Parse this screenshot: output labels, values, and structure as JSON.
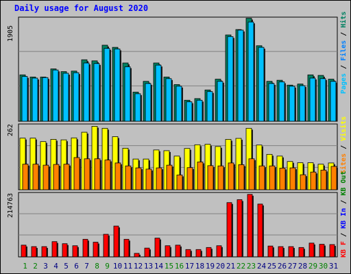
{
  "title": "Daily usage for August 2020",
  "colors": {
    "title": "#0000ff",
    "background": "#c0c0c0",
    "pages": "#00c0ff",
    "files": "#0080ff",
    "hits": "#008060",
    "visits": "#ffff00",
    "sites": "#ff8000",
    "kb_in": "#0000ff",
    "kb_out": "#008000",
    "kb_f": "#ff0000",
    "day_weekday": "#000080",
    "day_weekend": "#008000"
  },
  "chart_data": [
    {
      "type": "bar",
      "title": "Daily usage for August 2020",
      "ymax_label": "1905",
      "ylim": [
        0,
        1905
      ],
      "legend": [
        "Pages",
        "Files",
        "Hits"
      ],
      "categories": [
        "1",
        "2",
        "3",
        "4",
        "5",
        "6",
        "7",
        "8",
        "9",
        "10",
        "11",
        "12",
        "13",
        "14",
        "15",
        "16",
        "17",
        "18",
        "19",
        "20",
        "21",
        "22",
        "23",
        "24",
        "25",
        "26",
        "27",
        "28",
        "29",
        "30",
        "31"
      ],
      "weekend": [
        1,
        2,
        8,
        9,
        15,
        16,
        22,
        23,
        29,
        30
      ],
      "series": [
        {
          "name": "Hits",
          "values": [
            860,
            820,
            820,
            970,
            920,
            930,
            1140,
            1120,
            1410,
            1370,
            1080,
            540,
            740,
            1080,
            820,
            680,
            390,
            420,
            580,
            780,
            1600,
            1700,
            1910,
            1400,
            740,
            760,
            670,
            690,
            860,
            850,
            780
          ]
        },
        {
          "name": "Files",
          "values": [
            830,
            800,
            810,
            950,
            890,
            900,
            1080,
            1070,
            1350,
            1340,
            1010,
            510,
            700,
            1040,
            790,
            650,
            360,
            390,
            550,
            740,
            1570,
            1690,
            1840,
            1370,
            700,
            730,
            650,
            660,
            800,
            790,
            740
          ]
        },
        {
          "name": "Pages",
          "values": [
            0,
            0,
            0,
            0,
            0,
            0,
            0,
            0,
            0,
            0,
            0,
            0,
            0,
            0,
            0,
            0,
            0,
            0,
            0,
            0,
            0,
            0,
            0,
            0,
            0,
            0,
            0,
            0,
            0,
            0,
            0
          ]
        }
      ]
    },
    {
      "type": "bar",
      "ymax_label": "262",
      "ylim": [
        0,
        262
      ],
      "legend": [
        "Visits",
        "Sites"
      ],
      "series": [
        {
          "name": "Visits",
          "values": [
            210,
            210,
            196,
            205,
            203,
            211,
            234,
            258,
            250,
            216,
            169,
            125,
            125,
            162,
            159,
            137,
            168,
            183,
            185,
            176,
            205,
            209,
            250,
            182,
            144,
            137,
            115,
            110,
            110,
            104,
            109
          ]
        },
        {
          "name": "Sites",
          "values": [
            104,
            104,
            100,
            103,
            104,
            131,
            126,
            126,
            121,
            109,
            97,
            89,
            84,
            89,
            100,
            60,
            90,
            113,
            98,
            97,
            109,
            102,
            126,
            97,
            97,
            88,
            89,
            61,
            72,
            80,
            95
          ]
        }
      ]
    },
    {
      "type": "bar",
      "ymax_label": "214763",
      "ylim": [
        0,
        214763
      ],
      "legend": [
        "KB F",
        "KB In",
        "KB Out"
      ],
      "series": [
        {
          "name": "KB F",
          "values": [
            40000,
            35000,
            35000,
            52000,
            45000,
            38000,
            60000,
            50000,
            77000,
            105000,
            60000,
            12000,
            30000,
            64000,
            38000,
            40000,
            25000,
            25000,
            32000,
            38000,
            185000,
            195000,
            213000,
            180000,
            37000,
            35000,
            35000,
            32000,
            47000,
            43000,
            42000
          ]
        }
      ]
    }
  ]
}
